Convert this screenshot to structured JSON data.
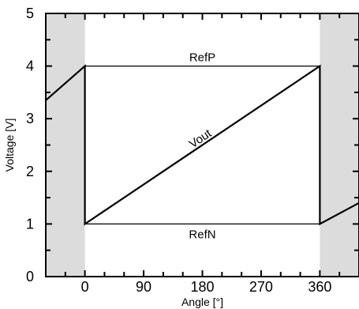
{
  "chart_data": {
    "type": "line",
    "xlabel": "Angle [°]",
    "ylabel": "Voltage [V]",
    "xlim": [
      -60,
      420
    ],
    "ylim": [
      0,
      5
    ],
    "x_ticks": [
      0,
      90,
      180,
      270,
      360
    ],
    "y_ticks": [
      0,
      1,
      2,
      3,
      4,
      5
    ],
    "x_ticks_display": [
      "0",
      "90",
      "180",
      "270",
      "360"
    ],
    "y_ticks_display": [
      "0",
      "1",
      "2",
      "3",
      "4",
      "5"
    ],
    "grid": false,
    "shaded_regions": [
      {
        "x": [
          -60,
          0
        ],
        "color": "#dcdcdc"
      },
      {
        "x": [
          360,
          420
        ],
        "color": "#dcdcdc"
      }
    ],
    "series": [
      {
        "name": "Vout",
        "color": "#000000",
        "points": [
          {
            "x": -60,
            "y": 3.35
          },
          {
            "x": 0,
            "y": 4.0
          },
          {
            "x": 0,
            "y": 1.0
          },
          {
            "x": 360,
            "y": 4.0
          },
          {
            "x": 360,
            "y": 1.0
          },
          {
            "x": 420,
            "y": 1.4
          }
        ]
      }
    ],
    "reference_lines": [
      {
        "name": "RefP",
        "y": 4,
        "x_start": 0,
        "x_end": 360
      },
      {
        "name": "RefN",
        "y": 1,
        "x_start": 0,
        "x_end": 360
      }
    ],
    "annotations": [
      {
        "text": "RefP",
        "x": 180,
        "y": 4,
        "position": "above"
      },
      {
        "text": "RefN",
        "x": 180,
        "y": 1,
        "position": "below"
      },
      {
        "text": "Vout",
        "x": 180,
        "y": 2.5,
        "rotation": "along-line"
      }
    ]
  }
}
